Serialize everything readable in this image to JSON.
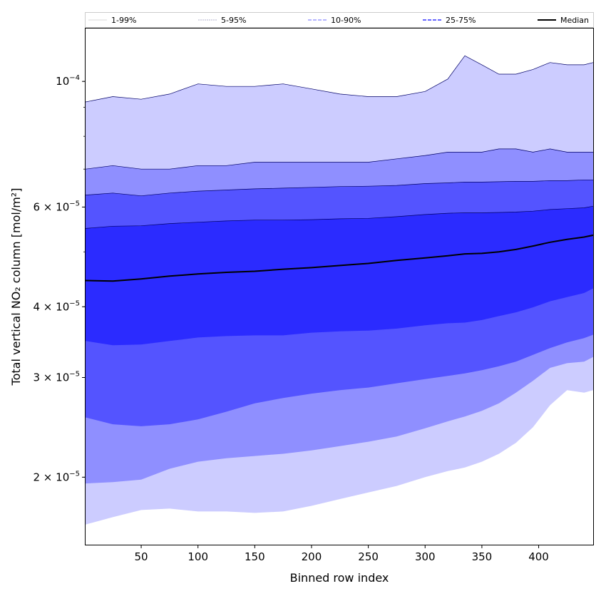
{
  "chart_data": {
    "type": "area",
    "xlabel": "Binned row index",
    "ylabel": "Total vertical NO₂ column [mol/m²]",
    "xlim": [
      1,
      448
    ],
    "ylim": [
      1.52e-05,
      0.000124
    ],
    "yscale": "log",
    "grid": false,
    "legend_position": "top",
    "x_ticks": [
      50,
      100,
      150,
      200,
      250,
      300,
      350,
      400
    ],
    "x_tick_labels": [
      "50",
      "100",
      "150",
      "200",
      "250",
      "300",
      "350",
      "400"
    ],
    "y_ticks": [
      {
        "value": 2e-05,
        "mantissa": "2",
        "base": "10",
        "exp": "−5"
      },
      {
        "value": 3e-05,
        "mantissa": "3",
        "base": "10",
        "exp": "−5"
      },
      {
        "value": 4e-05,
        "mantissa": "4",
        "base": "10",
        "exp": "−5"
      },
      {
        "value": 6e-05,
        "mantissa": "6",
        "base": "10",
        "exp": "−5"
      },
      {
        "value": 0.0001,
        "mantissa": "",
        "base": "10",
        "exp": "−4"
      }
    ],
    "x": [
      1,
      25,
      50,
      75,
      100,
      125,
      150,
      175,
      200,
      225,
      250,
      275,
      300,
      320,
      335,
      350,
      365,
      380,
      395,
      410,
      425,
      440,
      448
    ],
    "series": [
      {
        "name": "1-99%",
        "color": "#ccccff",
        "lower": [
          1.65e-05,
          1.7e-05,
          1.75e-05,
          1.76e-05,
          1.74e-05,
          1.74e-05,
          1.73e-05,
          1.74e-05,
          1.78e-05,
          1.83e-05,
          1.88e-05,
          1.93e-05,
          2e-05,
          2.05e-05,
          2.08e-05,
          2.13e-05,
          2.2e-05,
          2.3e-05,
          2.45e-05,
          2.68e-05,
          2.85e-05,
          2.82e-05,
          2.85e-05
        ],
        "upper": [
          9.2e-05,
          9.4e-05,
          9.3e-05,
          9.5e-05,
          9.9e-05,
          9.8e-05,
          9.8e-05,
          9.9e-05,
          9.7e-05,
          9.5e-05,
          9.4e-05,
          9.4e-05,
          9.6e-05,
          0.000101,
          0.000111,
          0.000107,
          0.000103,
          0.000103,
          0.000105,
          0.000108,
          0.000107,
          0.000107,
          0.000108
        ]
      },
      {
        "name": "5-95%",
        "color": "#8f8fff",
        "lower": [
          1.95e-05,
          1.96e-05,
          1.98e-05,
          2.07e-05,
          2.13e-05,
          2.16e-05,
          2.18e-05,
          2.2e-05,
          2.23e-05,
          2.27e-05,
          2.31e-05,
          2.36e-05,
          2.44e-05,
          2.51e-05,
          2.56e-05,
          2.62e-05,
          2.7e-05,
          2.82e-05,
          2.96e-05,
          3.12e-05,
          3.18e-05,
          3.2e-05,
          3.26e-05
        ],
        "upper": [
          7e-05,
          7.1e-05,
          7e-05,
          7e-05,
          7.1e-05,
          7.1e-05,
          7.2e-05,
          7.2e-05,
          7.2e-05,
          7.2e-05,
          7.2e-05,
          7.3e-05,
          7.4e-05,
          7.5e-05,
          7.5e-05,
          7.5e-05,
          7.6e-05,
          7.6e-05,
          7.5e-05,
          7.6e-05,
          7.5e-05,
          7.5e-05,
          7.5e-05
        ]
      },
      {
        "name": "10-90%",
        "color": "#5454ff",
        "lower": [
          2.55e-05,
          2.48e-05,
          2.46e-05,
          2.48e-05,
          2.53e-05,
          2.61e-05,
          2.7e-05,
          2.76e-05,
          2.81e-05,
          2.85e-05,
          2.88e-05,
          2.93e-05,
          2.98e-05,
          3.02e-05,
          3.05e-05,
          3.09e-05,
          3.14e-05,
          3.2e-05,
          3.29e-05,
          3.38e-05,
          3.46e-05,
          3.52e-05,
          3.57e-05
        ],
        "upper": [
          6.3e-05,
          6.35e-05,
          6.28e-05,
          6.35e-05,
          6.4e-05,
          6.43e-05,
          6.46e-05,
          6.48e-05,
          6.5e-05,
          6.52e-05,
          6.53e-05,
          6.55e-05,
          6.6e-05,
          6.62e-05,
          6.64e-05,
          6.64e-05,
          6.65e-05,
          6.66e-05,
          6.66e-05,
          6.68e-05,
          6.68e-05,
          6.7e-05,
          6.7e-05
        ]
      },
      {
        "name": "25-75%",
        "color": "#2b2bff",
        "lower": [
          3.48e-05,
          3.42e-05,
          3.43e-05,
          3.48e-05,
          3.53e-05,
          3.55e-05,
          3.56e-05,
          3.56e-05,
          3.6e-05,
          3.62e-05,
          3.63e-05,
          3.66e-05,
          3.71e-05,
          3.74e-05,
          3.75e-05,
          3.79e-05,
          3.85e-05,
          3.91e-05,
          3.99e-05,
          4.09e-05,
          4.16e-05,
          4.23e-05,
          4.31e-05
        ],
        "upper": [
          5.5e-05,
          5.55e-05,
          5.56e-05,
          5.61e-05,
          5.64e-05,
          5.67e-05,
          5.69e-05,
          5.69e-05,
          5.7e-05,
          5.72e-05,
          5.73e-05,
          5.77e-05,
          5.82e-05,
          5.85e-05,
          5.86e-05,
          5.86e-05,
          5.87e-05,
          5.88e-05,
          5.9e-05,
          5.94e-05,
          5.96e-05,
          5.98e-05,
          6.02e-05
        ]
      },
      {
        "name": "Median",
        "color": "#000000",
        "values": [
          4.45e-05,
          4.44e-05,
          4.48e-05,
          4.53e-05,
          4.57e-05,
          4.6e-05,
          4.62e-05,
          4.66e-05,
          4.69e-05,
          4.73e-05,
          4.77e-05,
          4.83e-05,
          4.88e-05,
          4.92e-05,
          4.96e-05,
          4.97e-05,
          5e-05,
          5.05e-05,
          5.12e-05,
          5.2e-05,
          5.26e-05,
          5.31e-05,
          5.35e-05
        ]
      }
    ]
  }
}
